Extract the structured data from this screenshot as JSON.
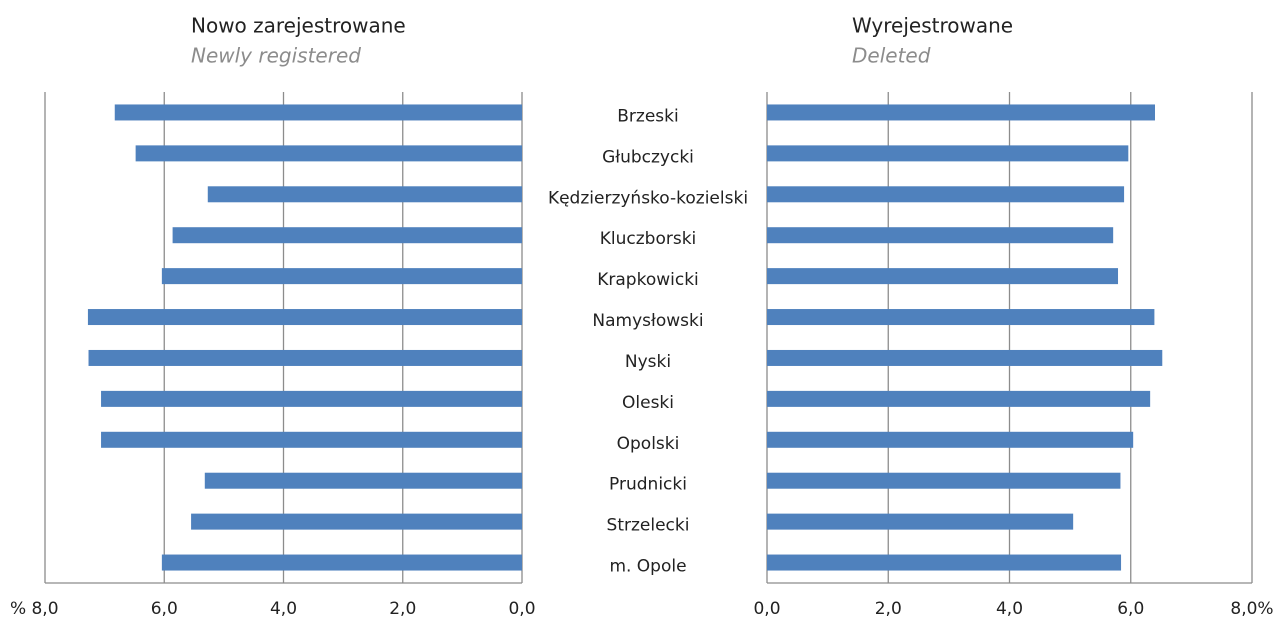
{
  "chart_data": [
    {
      "type": "bar",
      "orientation": "horizontal",
      "reversed": true,
      "title": "Nowo zarejestrowane",
      "subtitle": "Newly registered",
      "unit_label": "%",
      "categories": [
        "Brzeski",
        "Głubczycki",
        "Kędzierzyńsko-kozielski",
        "Kluczborski",
        "Krapkowicki",
        "Namysłowski",
        "Nyski",
        "Oleski",
        "Opolski",
        "Prudnicki",
        "Strzelecki",
        "m. Opole"
      ],
      "values": [
        6.83,
        6.48,
        5.27,
        5.86,
        6.04,
        7.28,
        7.27,
        7.06,
        7.06,
        5.32,
        5.55,
        6.04
      ],
      "color": "#4f81bd",
      "xlim": [
        0,
        8
      ],
      "xticks": [
        {
          "value": 0,
          "label": "0,0"
        },
        {
          "value": 2,
          "label": "2,0"
        },
        {
          "value": 4,
          "label": "4,0"
        },
        {
          "value": 6,
          "label": "6,0"
        },
        {
          "value": 8,
          "label": "8,0"
        }
      ],
      "grid": true
    },
    {
      "type": "bar",
      "orientation": "horizontal",
      "reversed": false,
      "title": "Wyrejestrowane",
      "subtitle": "Deleted",
      "values": [
        6.4,
        5.96,
        5.89,
        5.71,
        5.79,
        6.39,
        6.52,
        6.32,
        6.04,
        5.83,
        5.05,
        5.84
      ],
      "color": "#4f81bd",
      "xlim": [
        0,
        8
      ],
      "xticks": [
        {
          "value": 0,
          "label": "0,0"
        },
        {
          "value": 2,
          "label": "2,0"
        },
        {
          "value": 4,
          "label": "4,0"
        },
        {
          "value": 6,
          "label": "6,0"
        },
        {
          "value": 8,
          "label": "8,0%"
        }
      ],
      "grid": true
    }
  ]
}
